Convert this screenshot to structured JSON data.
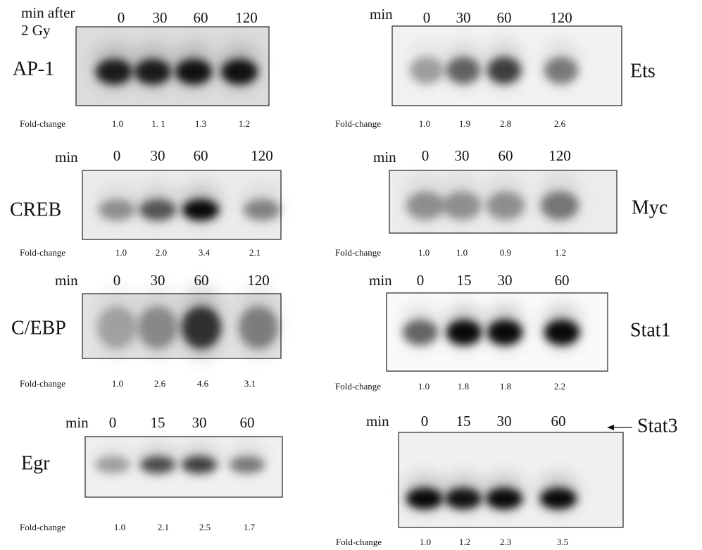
{
  "panels": [
    {
      "label": "AP-1",
      "time_header": [
        "min after",
        "2 Gy"
      ],
      "times": [
        "0",
        "30",
        "60",
        "120"
      ],
      "fold_label": "Fold-change",
      "fold_changes": [
        "1.0",
        "1. 1",
        "1.3",
        "1.2"
      ]
    },
    {
      "label": "CREB",
      "time_header": [
        "min"
      ],
      "times": [
        "0",
        "30",
        "60",
        "120"
      ],
      "fold_label": "Fold-change",
      "fold_changes": [
        "1.0",
        "2.0",
        "3.4",
        "2.1"
      ]
    },
    {
      "label": "C/EBP",
      "time_header": [
        "min"
      ],
      "times": [
        "0",
        "30",
        "60",
        "120"
      ],
      "fold_label": "Fold-change",
      "fold_changes": [
        "1.0",
        "2.6",
        "4.6",
        "3.1"
      ]
    },
    {
      "label": "Egr",
      "time_header": [
        "min"
      ],
      "times": [
        "0",
        "15",
        "30",
        "60"
      ],
      "fold_label": "Fold-change",
      "fold_changes": [
        "1.0",
        "2.1",
        "2.5",
        "1.7"
      ]
    },
    {
      "label": "Ets",
      "time_header": [
        "min"
      ],
      "times": [
        "0",
        "30",
        "60",
        "120"
      ],
      "fold_label": "Fold-change",
      "fold_changes": [
        "1.0",
        "1.9",
        "2.8",
        "2.6"
      ]
    },
    {
      "label": "Myc",
      "time_header": [
        "min"
      ],
      "times": [
        "0",
        "30",
        "60",
        "120"
      ],
      "fold_label": "Fold-change",
      "fold_changes": [
        "1.0",
        "1.0",
        "0.9",
        "1.2"
      ]
    },
    {
      "label": "Stat1",
      "time_header": [
        "min"
      ],
      "times": [
        "0",
        "15",
        "30",
        "60"
      ],
      "fold_label": "Fold-change",
      "fold_changes": [
        "1.0",
        "1.8",
        "1.8",
        "2.2"
      ]
    },
    {
      "label": "Stat3",
      "time_header": [
        "min"
      ],
      "times": [
        "0",
        "15",
        "30",
        "60"
      ],
      "fold_label": "Fold-change",
      "fold_changes": [
        "1.0",
        "1.2",
        "2.3",
        "3.5"
      ]
    }
  ]
}
